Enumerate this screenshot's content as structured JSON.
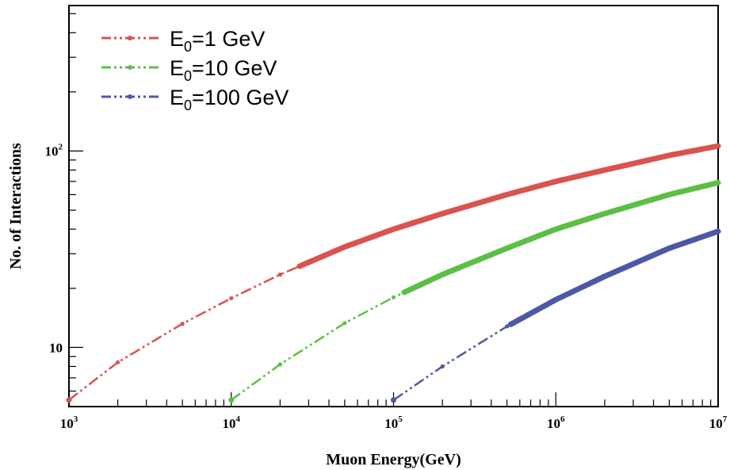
{
  "chart_data": {
    "type": "line",
    "xlabel": "Muon Energy(GeV)",
    "ylabel": "No. of Interactions",
    "x_scale": "log",
    "y_scale": "log",
    "xlim": [
      1000,
      10000000
    ],
    "ylim": [
      5,
      550
    ],
    "grid": false,
    "legend_position": "top-left",
    "x_ticks": [
      {
        "value": 1000,
        "base": "10",
        "exp": "3"
      },
      {
        "value": 10000,
        "base": "10",
        "exp": "4"
      },
      {
        "value": 100000,
        "base": "10",
        "exp": "5"
      },
      {
        "value": 1000000,
        "base": "10",
        "exp": "6"
      },
      {
        "value": 10000000,
        "base": "10",
        "exp": "7"
      }
    ],
    "y_ticks": [
      {
        "value": 10,
        "base": "10",
        "exp": ""
      },
      {
        "value": 100,
        "base": "10",
        "exp": "2"
      }
    ],
    "series": [
      {
        "name": "E0=1 GeV",
        "legend_main": "E",
        "legend_sub": "0",
        "legend_rest": "=1 GeV",
        "color": "#d9534f",
        "x": [
          1000,
          2000,
          5000,
          10000,
          20000,
          50000,
          100000,
          200000,
          500000,
          1000000,
          2000000,
          5000000,
          10000000
        ],
        "values": [
          5.4,
          8.4,
          13.2,
          17.8,
          23.5,
          32.5,
          40,
          48,
          60,
          70,
          80,
          95,
          106
        ]
      },
      {
        "name": "E0=10 GeV",
        "legend_main": "E",
        "legend_sub": "0",
        "legend_rest": "=10 GeV",
        "color": "#5cbf45",
        "x": [
          10000,
          20000,
          50000,
          100000,
          200000,
          500000,
          1000000,
          2000000,
          5000000,
          10000000
        ],
        "values": [
          5.4,
          8.2,
          13.3,
          18,
          23.5,
          32,
          40,
          48,
          60,
          69
        ]
      },
      {
        "name": "E0=100 GeV",
        "legend_main": "E",
        "legend_sub": "0",
        "legend_rest": "=100 GeV",
        "color": "#4d58a6",
        "x": [
          100000,
          200000,
          500000,
          1000000,
          2000000,
          5000000,
          10000000
        ],
        "values": [
          5.4,
          8.0,
          12.8,
          17.5,
          23,
          32,
          39
        ]
      }
    ]
  }
}
